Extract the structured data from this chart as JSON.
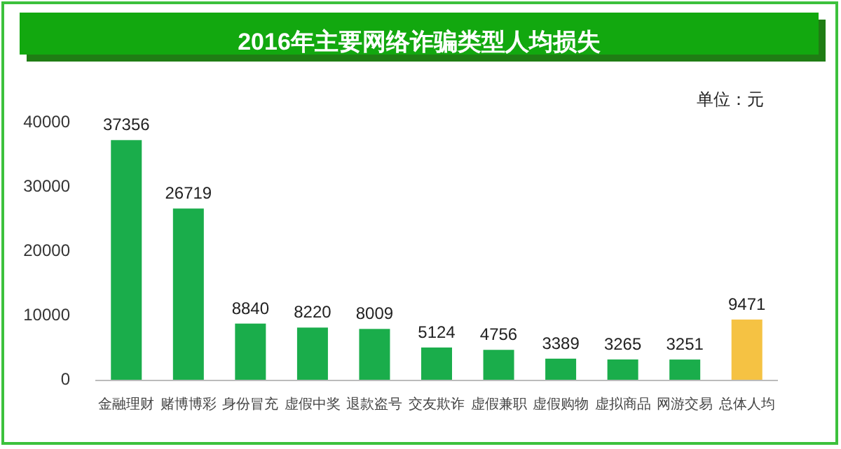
{
  "chart_data": {
    "type": "bar",
    "title": "2016年主要网络诈骗类型人均损失",
    "categories": [
      "金融理财",
      "赌博博彩",
      "身份冒充",
      "虚假中奖",
      "退款盗号",
      "交友欺诈",
      "虚假兼职",
      "虚假购物",
      "虚拟商品",
      "网游交易",
      "总体人均"
    ],
    "values": [
      37356,
      26719,
      8840,
      8220,
      8009,
      5124,
      4756,
      3389,
      3265,
      3251,
      9471
    ],
    "colors": [
      "#1aad4b",
      "#1aad4b",
      "#1aad4b",
      "#1aad4b",
      "#1aad4b",
      "#1aad4b",
      "#1aad4b",
      "#1aad4b",
      "#1aad4b",
      "#1aad4b",
      "#f5c243"
    ],
    "ylim": [
      0,
      40000
    ],
    "yticks": [
      0,
      10000,
      20000,
      30000,
      40000
    ],
    "data_labels": true,
    "annotations": [
      "单位：元"
    ]
  }
}
